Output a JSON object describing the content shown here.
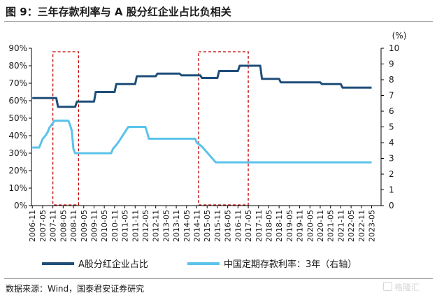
{
  "title": "图 9：三年存款利率与 A 股分红企业占比负相关",
  "source": "数据来源：Wind，国泰君安证券研究",
  "watermark": "格隆汇",
  "colors": {
    "dividend": "#1f4e79",
    "rate": "#5bc3ea",
    "box": "#c00000",
    "axis": "#000000"
  },
  "chart_data": {
    "type": "line",
    "title": "",
    "x": [
      "2006-11",
      "2007-05",
      "2007-11",
      "2008-05",
      "2008-11",
      "2009-05",
      "2009-11",
      "2010-05",
      "2010-11",
      "2011-05",
      "2011-11",
      "2012-05",
      "2012-11",
      "2013-05",
      "2013-11",
      "2014-05",
      "2014-11",
      "2015-05",
      "2015-11",
      "2016-05",
      "2016-11",
      "2017-05",
      "2017-11",
      "2018-05",
      "2018-11",
      "2019-05",
      "2019-11",
      "2020-05",
      "2020-11",
      "2021-05",
      "2021-11",
      "2022-05",
      "2022-11",
      "2023-05"
    ],
    "y_left": {
      "ylim": [
        0,
        90
      ],
      "ticks": [
        "0%",
        "10%",
        "20%",
        "30%",
        "40%",
        "50%",
        "60%",
        "70%",
        "80%",
        "90%"
      ]
    },
    "y_right": {
      "unit": "(%)",
      "ylim": [
        0,
        10
      ],
      "ticks": [
        "0",
        "1",
        "2",
        "3",
        "4",
        "5",
        "6",
        "7",
        "8",
        "9",
        "10"
      ]
    },
    "grid": false,
    "legend_position": "bottom",
    "series": [
      {
        "name": "A股分红企业占比",
        "axis": "left",
        "points": [
          [
            "2006-11",
            61.5
          ],
          [
            "2008-01",
            61.5
          ],
          [
            "2008-02",
            56.5
          ],
          [
            "2008-12",
            56.5
          ],
          [
            "2009-01",
            59.5
          ],
          [
            "2009-11",
            59.5
          ],
          [
            "2009-12",
            65
          ],
          [
            "2010-11",
            65
          ],
          [
            "2010-12",
            69.5
          ],
          [
            "2011-11",
            69.5
          ],
          [
            "2011-12",
            74
          ],
          [
            "2012-11",
            74
          ],
          [
            "2012-12",
            75.5
          ],
          [
            "2014-01",
            75.5
          ],
          [
            "2014-02",
            74.5
          ],
          [
            "2015-01",
            74.5
          ],
          [
            "2015-02",
            73
          ],
          [
            "2015-11",
            73
          ],
          [
            "2015-12",
            77
          ],
          [
            "2016-11",
            77
          ],
          [
            "2016-12",
            80
          ],
          [
            "2017-12",
            80
          ],
          [
            "2018-01",
            72.5
          ],
          [
            "2018-11",
            72.5
          ],
          [
            "2018-12",
            70.5
          ],
          [
            "2020-11",
            70.5
          ],
          [
            "2020-12",
            69.5
          ],
          [
            "2021-11",
            69.5
          ],
          [
            "2021-12",
            67.5
          ],
          [
            "2023-05",
            67.5
          ]
        ]
      },
      {
        "name": "中国定期存款利率：3年（右轴）",
        "axis": "right",
        "points": [
          [
            "2006-11",
            3.69
          ],
          [
            "2007-03",
            3.69
          ],
          [
            "2007-04",
            3.96
          ],
          [
            "2007-05",
            4.23
          ],
          [
            "2007-07",
            4.5
          ],
          [
            "2007-08",
            4.68
          ],
          [
            "2007-09",
            4.95
          ],
          [
            "2007-12",
            5.4
          ],
          [
            "2008-08",
            5.4
          ],
          [
            "2008-09",
            5.13
          ],
          [
            "2008-10",
            4.77
          ],
          [
            "2008-11",
            3.6
          ],
          [
            "2008-12",
            3.33
          ],
          [
            "2010-09",
            3.33
          ],
          [
            "2010-10",
            3.6
          ],
          [
            "2010-12",
            3.85
          ],
          [
            "2011-02",
            4.15
          ],
          [
            "2011-04",
            4.5
          ],
          [
            "2011-07",
            5.0
          ],
          [
            "2012-05",
            5.0
          ],
          [
            "2012-06",
            4.65
          ],
          [
            "2012-07",
            4.25
          ],
          [
            "2014-10",
            4.25
          ],
          [
            "2014-11",
            4.0
          ],
          [
            "2015-02",
            3.75
          ],
          [
            "2015-04",
            3.5
          ],
          [
            "2015-06",
            3.25
          ],
          [
            "2015-08",
            3.0
          ],
          [
            "2015-10",
            2.75
          ],
          [
            "2023-05",
            2.75
          ]
        ]
      }
    ],
    "highlight_boxes": [
      {
        "x_start": "2007-11",
        "x_end": "2009-02",
        "y_range_left": [
          0,
          88
        ]
      },
      {
        "x_start": "2014-12",
        "x_end": "2017-05",
        "y_range_left": [
          0,
          88
        ]
      }
    ]
  }
}
